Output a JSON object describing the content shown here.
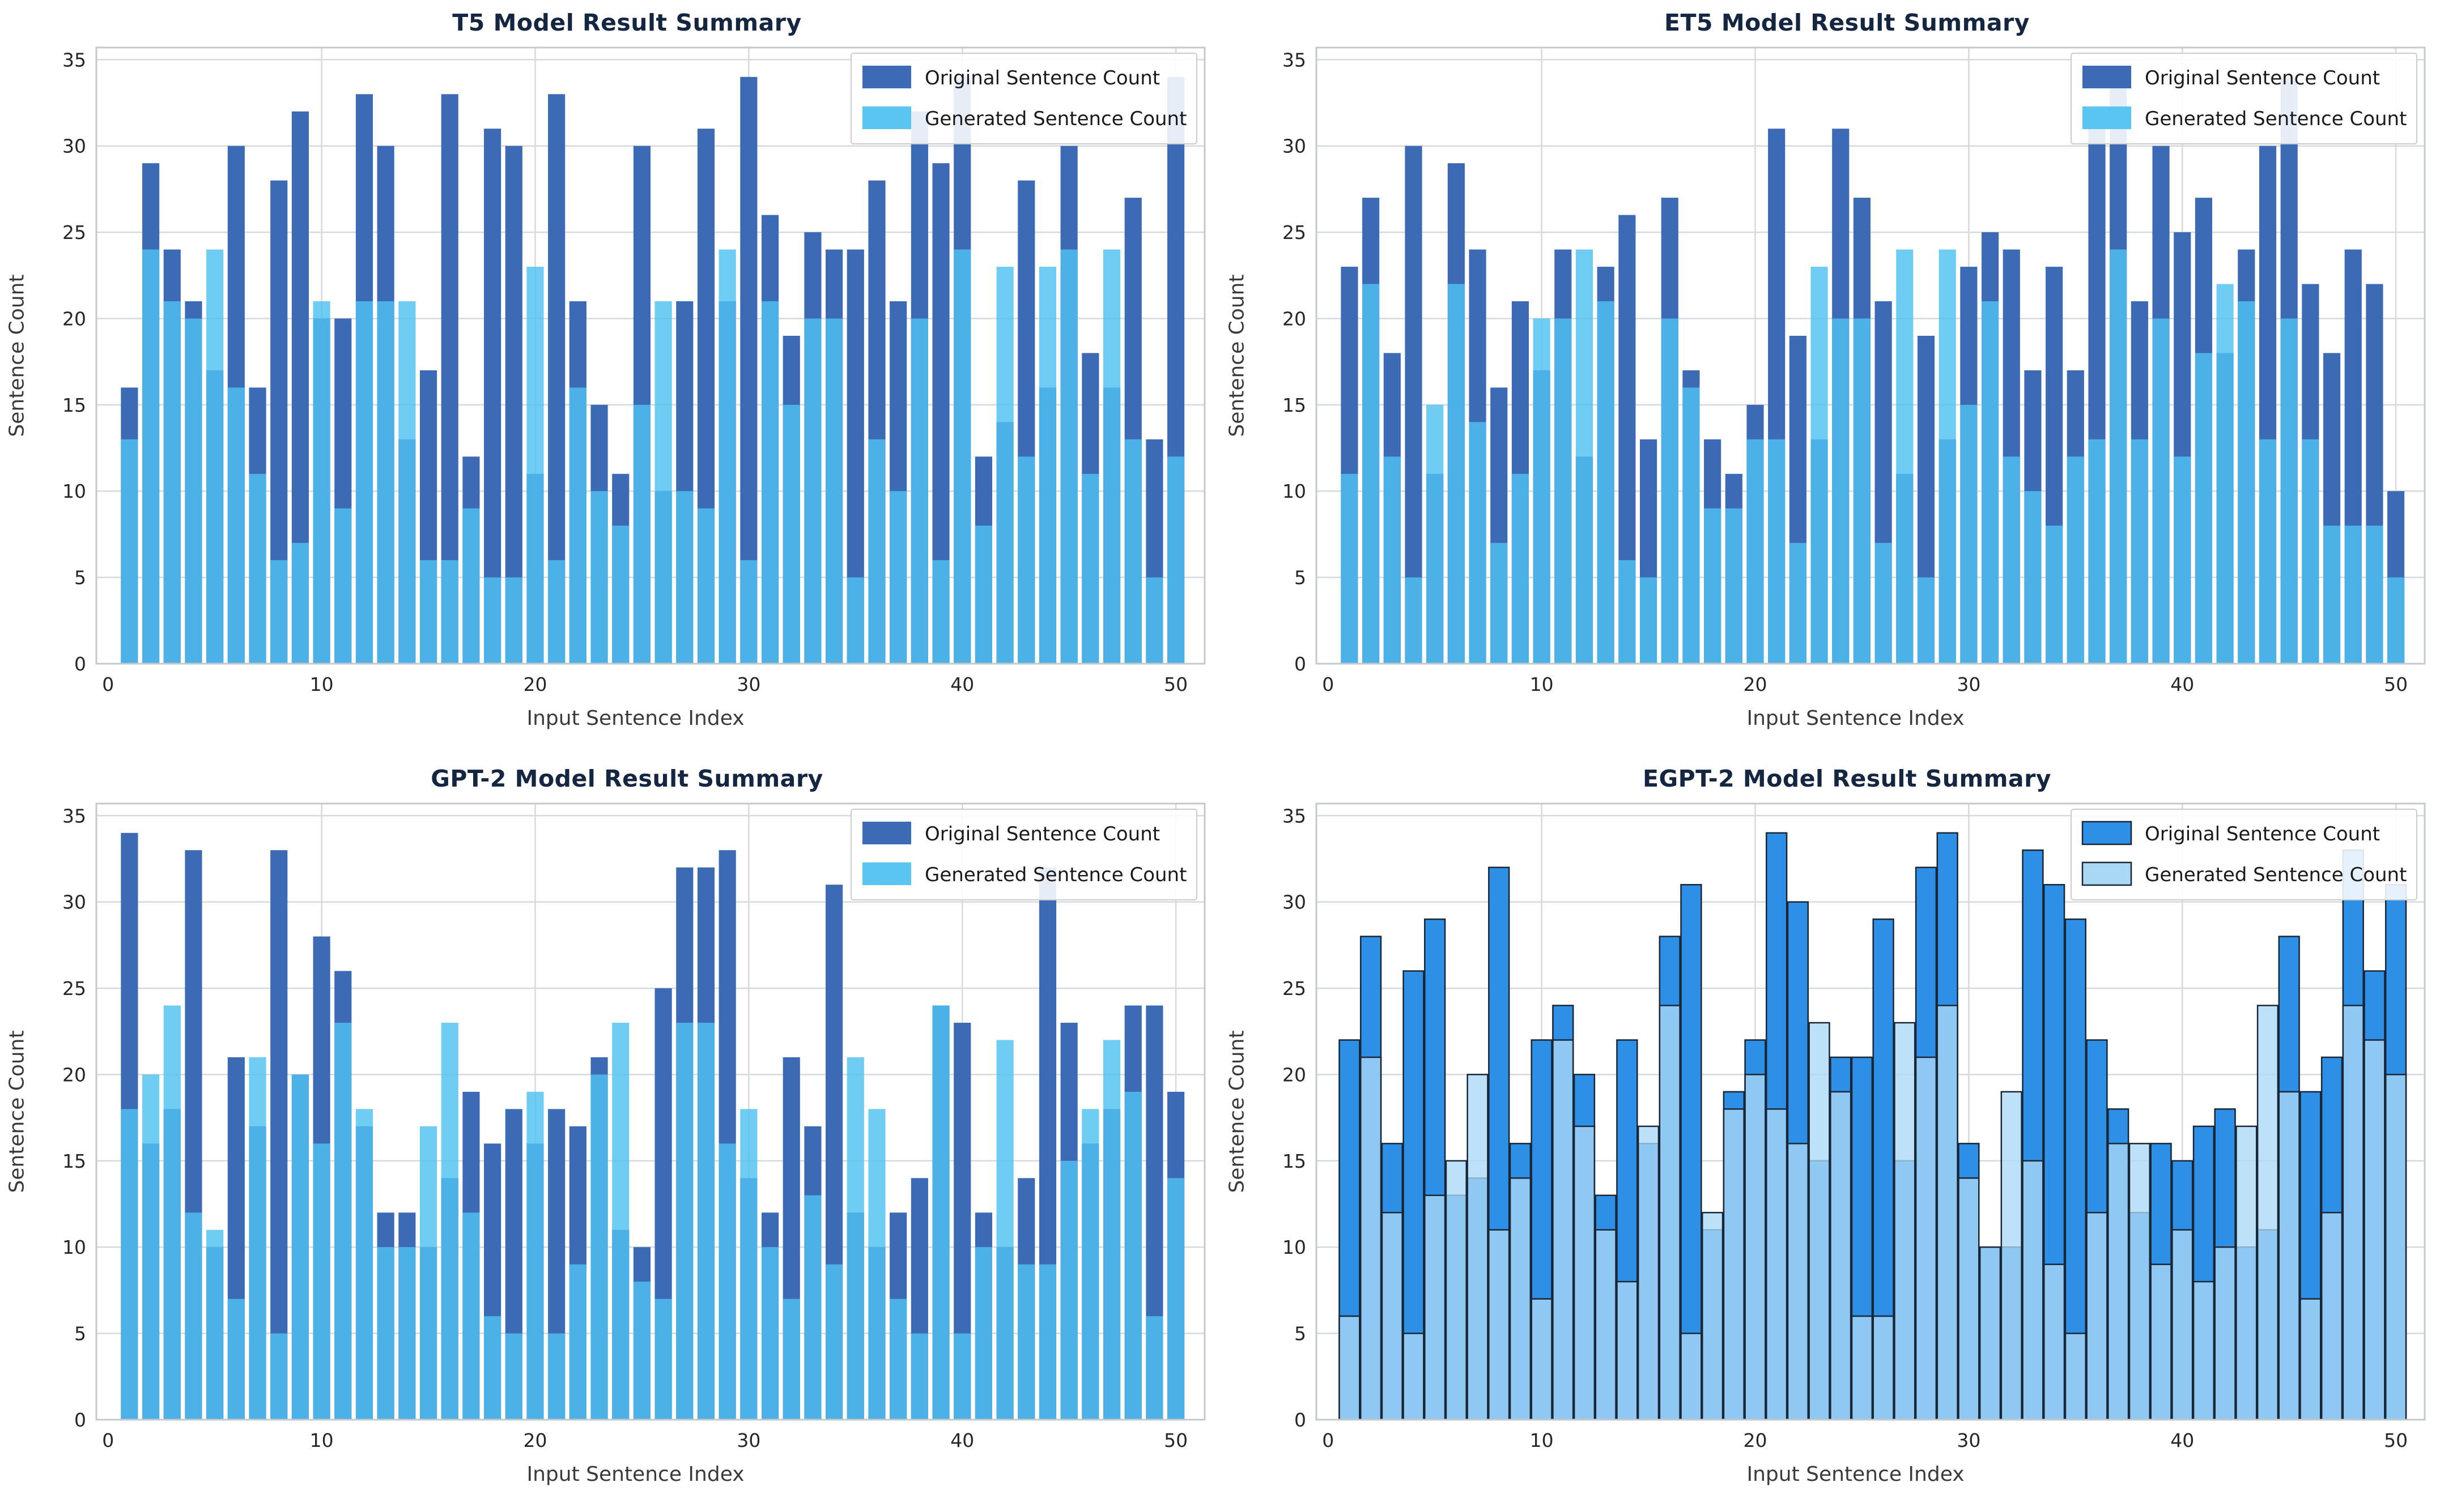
{
  "figure": {
    "background": "#ffffff",
    "grid_color": "#d6d9dd",
    "spine_color": "#c5c9ce",
    "title_color": "#152642",
    "tick_color": "#262626",
    "label_color": "#3a3a3a"
  },
  "chart_data": [
    {
      "type": "bar",
      "title": "T5 Model Result Summary",
      "xlabel": "Input Sentence Index",
      "ylabel": "Sentence Count",
      "legend": [
        "Original Sentence Count",
        "Generated Sentence Count"
      ],
      "legend_position": "upper right",
      "grid": true,
      "x_range": [
        1,
        50
      ],
      "xticks": [
        0,
        10,
        20,
        30,
        40,
        50
      ],
      "yticks": [
        0,
        5,
        10,
        15,
        20,
        25,
        30,
        35
      ],
      "ylim": [
        0,
        35.7
      ],
      "style": {
        "original_color": "#3C6AB5",
        "generated_color": "#4FC1F0",
        "generated_legend_color": "#5BC5F2",
        "generated_alpha": 0.82,
        "edge_color": "none",
        "edge_width": 0,
        "bar_width": 0.8
      },
      "series": [
        {
          "name": "Original Sentence Count",
          "values": [
            16,
            29,
            24,
            21,
            17,
            30,
            16,
            28,
            32,
            20,
            20,
            33,
            30,
            13,
            17,
            33,
            12,
            31,
            30,
            11,
            33,
            21,
            15,
            11,
            30,
            10,
            21,
            31,
            21,
            34,
            26,
            19,
            25,
            24,
            24,
            28,
            21,
            32,
            29,
            34,
            12,
            14,
            28,
            16,
            30,
            18,
            16,
            27,
            13,
            34
          ]
        },
        {
          "name": "Generated Sentence Count",
          "values": [
            13,
            24,
            21,
            20,
            24,
            16,
            11,
            6,
            7,
            21,
            9,
            21,
            21,
            21,
            6,
            6,
            9,
            5,
            5,
            23,
            6,
            16,
            10,
            8,
            15,
            21,
            10,
            9,
            24,
            6,
            21,
            15,
            20,
            20,
            5,
            13,
            10,
            20,
            6,
            24,
            8,
            23,
            12,
            23,
            24,
            11,
            24,
            13,
            5,
            12
          ]
        }
      ]
    },
    {
      "type": "bar",
      "title": "ET5 Model Result Summary",
      "xlabel": "Input Sentence Index",
      "ylabel": "Sentence Count",
      "legend": [
        "Original Sentence Count",
        "Generated Sentence Count"
      ],
      "legend_position": "upper right",
      "grid": true,
      "x_range": [
        1,
        50
      ],
      "xticks": [
        0,
        10,
        20,
        30,
        40,
        50
      ],
      "yticks": [
        0,
        5,
        10,
        15,
        20,
        25,
        30,
        35
      ],
      "ylim": [
        0,
        35.7
      ],
      "style": {
        "original_color": "#3C6AB5",
        "generated_color": "#4FC1F0",
        "generated_legend_color": "#5BC5F2",
        "generated_alpha": 0.82,
        "edge_color": "none",
        "edge_width": 0,
        "bar_width": 0.8
      },
      "series": [
        {
          "name": "Original Sentence Count",
          "values": [
            23,
            27,
            18,
            30,
            11,
            29,
            24,
            16,
            21,
            17,
            24,
            12,
            23,
            26,
            13,
            27,
            17,
            13,
            11,
            15,
            31,
            19,
            13,
            31,
            27,
            21,
            11,
            19,
            13,
            23,
            25,
            24,
            17,
            23,
            17,
            32,
            34,
            21,
            30,
            25,
            27,
            18,
            24,
            30,
            34,
            22,
            18,
            24,
            22,
            10
          ]
        },
        {
          "name": "Generated Sentence Count",
          "values": [
            11,
            22,
            12,
            5,
            15,
            22,
            14,
            7,
            11,
            20,
            20,
            24,
            21,
            6,
            5,
            20,
            16,
            9,
            9,
            13,
            13,
            7,
            23,
            20,
            20,
            7,
            24,
            5,
            24,
            15,
            21,
            12,
            10,
            8,
            12,
            13,
            24,
            13,
            20,
            12,
            18,
            22,
            21,
            13,
            20,
            13,
            8,
            8,
            8,
            5
          ]
        }
      ]
    },
    {
      "type": "bar",
      "title": "GPT-2 Model Result Summary",
      "xlabel": "Input Sentence Index",
      "ylabel": "Sentence Count",
      "legend": [
        "Original Sentence Count",
        "Generated Sentence Count"
      ],
      "legend_position": "upper right",
      "grid": true,
      "x_range": [
        1,
        50
      ],
      "xticks": [
        0,
        10,
        20,
        30,
        40,
        50
      ],
      "yticks": [
        0,
        5,
        10,
        15,
        20,
        25,
        30,
        35
      ],
      "ylim": [
        0,
        35.7
      ],
      "style": {
        "original_color": "#3C6AB5",
        "generated_color": "#4FC1F0",
        "generated_legend_color": "#5BC5F2",
        "generated_alpha": 0.82,
        "edge_color": "none",
        "edge_width": 0,
        "bar_width": 0.8
      },
      "series": [
        {
          "name": "Original Sentence Count",
          "values": [
            34,
            16,
            18,
            33,
            10,
            21,
            17,
            33,
            20,
            28,
            26,
            17,
            12,
            12,
            10,
            14,
            19,
            16,
            18,
            16,
            18,
            17,
            21,
            11,
            10,
            25,
            32,
            32,
            33,
            14,
            12,
            21,
            17,
            31,
            12,
            10,
            12,
            14,
            24,
            23,
            12,
            10,
            14,
            32,
            23,
            16,
            18,
            24,
            24,
            19
          ]
        },
        {
          "name": "Generated Sentence Count",
          "values": [
            18,
            20,
            24,
            12,
            11,
            7,
            21,
            5,
            20,
            16,
            23,
            18,
            10,
            10,
            17,
            23,
            12,
            6,
            5,
            19,
            5,
            9,
            20,
            23,
            8,
            7,
            23,
            23,
            16,
            18,
            10,
            7,
            13,
            9,
            21,
            18,
            7,
            5,
            24,
            5,
            10,
            22,
            9,
            9,
            15,
            18,
            22,
            19,
            6,
            14
          ]
        }
      ]
    },
    {
      "type": "bar",
      "title": "EGPT-2 Model Result Summary",
      "xlabel": "Input Sentence Index",
      "ylabel": "Sentence Count",
      "legend": [
        "Original Sentence Count",
        "Generated Sentence Count"
      ],
      "legend_position": "upper right",
      "grid": true,
      "x_range": [
        1,
        50
      ],
      "xticks": [
        0,
        10,
        20,
        30,
        40,
        50
      ],
      "yticks": [
        0,
        5,
        10,
        15,
        20,
        25,
        30,
        35
      ],
      "ylim": [
        0,
        35.7
      ],
      "style": {
        "original_color": "#2E8FE6",
        "generated_color": "#ABD9F6",
        "generated_legend_color": "#A9D8F5",
        "generated_alpha": 0.78,
        "edge_color": "#1a2634",
        "edge_width": 2.5,
        "bar_width": 0.95
      },
      "series": [
        {
          "name": "Original Sentence Count",
          "values": [
            22,
            28,
            16,
            26,
            29,
            13,
            14,
            32,
            16,
            22,
            24,
            20,
            13,
            22,
            16,
            28,
            31,
            11,
            19,
            22,
            34,
            30,
            15,
            21,
            21,
            29,
            15,
            32,
            34,
            16,
            10,
            10,
            33,
            31,
            29,
            22,
            18,
            12,
            16,
            15,
            17,
            18,
            10,
            11,
            28,
            19,
            21,
            33,
            26,
            31
          ]
        },
        {
          "name": "Generated Sentence Count",
          "values": [
            6,
            21,
            12,
            5,
            13,
            15,
            20,
            11,
            14,
            7,
            22,
            17,
            11,
            8,
            17,
            24,
            5,
            12,
            18,
            20,
            18,
            16,
            23,
            19,
            6,
            6,
            23,
            21,
            24,
            14,
            10,
            19,
            15,
            9,
            5,
            12,
            16,
            16,
            9,
            11,
            8,
            10,
            17,
            24,
            19,
            7,
            12,
            24,
            22,
            20
          ]
        }
      ]
    }
  ]
}
